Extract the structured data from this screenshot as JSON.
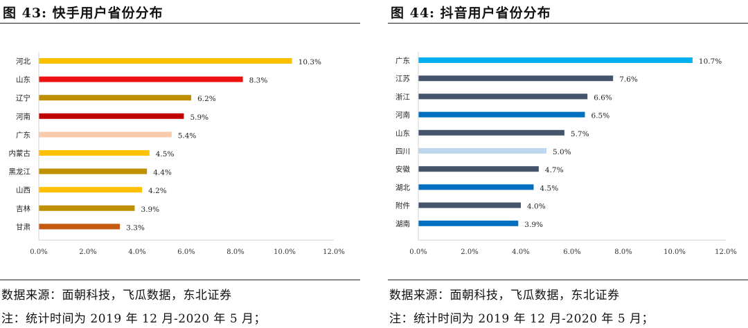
{
  "charts": [
    {
      "id": "left",
      "title": "图  43:  快手用户省份分布",
      "source": "数据来源：面朝科技，飞瓜数据，东北证券",
      "stat_note": "注：统计时间为 2019 年 12 月-2020 年 5 月；",
      "colors": [
        "#f9c000",
        "#ee1111",
        "#bf8f00",
        "#c00000",
        "#f8cbad",
        "#ffc000",
        "#bf9000",
        "#ffc000",
        "#bf9000",
        "#c55a11"
      ]
    },
    {
      "id": "right",
      "title": "图  44:  抖音用户省份分布",
      "source": "数据来源：面朝科技，飞瓜数据，东北证券",
      "stat_note": "注：统计时间为 2019 年 12 月-2020 年 5 月；",
      "colors": [
        "#00b0f0",
        "#44546a",
        "#44546a",
        "#0070c0",
        "#44546a",
        "#bdd7ee",
        "#44546a",
        "#0070c0",
        "#44546a",
        "#0070c0"
      ]
    }
  ],
  "chart_data": [
    {
      "type": "bar",
      "orientation": "horizontal",
      "title": "快手用户省份分布",
      "categories": [
        "河北",
        "山东",
        "辽宁",
        "河南",
        "广东",
        "内蒙古",
        "黑龙江",
        "山西",
        "吉林",
        "甘肃"
      ],
      "values": [
        10.3,
        8.3,
        6.2,
        5.9,
        5.4,
        4.5,
        4.4,
        4.2,
        3.9,
        3.3
      ],
      "value_labels": [
        "10.3%",
        "8.3%",
        "6.2%",
        "5.9%",
        "5.4%",
        "4.5%",
        "4.4%",
        "4.2%",
        "3.9%",
        "3.3%"
      ],
      "xlim": [
        0,
        12
      ],
      "x_ticks": [
        "0.0%",
        "2.0%",
        "4.0%",
        "6.0%",
        "8.0%",
        "10.0%",
        "12.0%"
      ],
      "grid": false
    },
    {
      "type": "bar",
      "orientation": "horizontal",
      "title": "抖音用户省份分布",
      "categories": [
        "广东",
        "江苏",
        "浙江",
        "河南",
        "山东",
        "四川",
        "安徽",
        "湖北",
        "附件",
        "湖南"
      ],
      "values": [
        10.7,
        7.6,
        6.6,
        6.5,
        5.7,
        5.0,
        4.7,
        4.5,
        4.0,
        3.9
      ],
      "value_labels": [
        "10.7%",
        "7.6%",
        "6.6%",
        "6.5%",
        "5.7%",
        "5.0%",
        "4.7%",
        "4.5%",
        "4.0%",
        "3.9%"
      ],
      "xlim": [
        0,
        12
      ],
      "x_ticks": [
        "0.0%",
        "2.0%",
        "4.0%",
        "6.0%",
        "8.0%",
        "10.0%",
        "12.0%"
      ],
      "grid": false
    }
  ]
}
